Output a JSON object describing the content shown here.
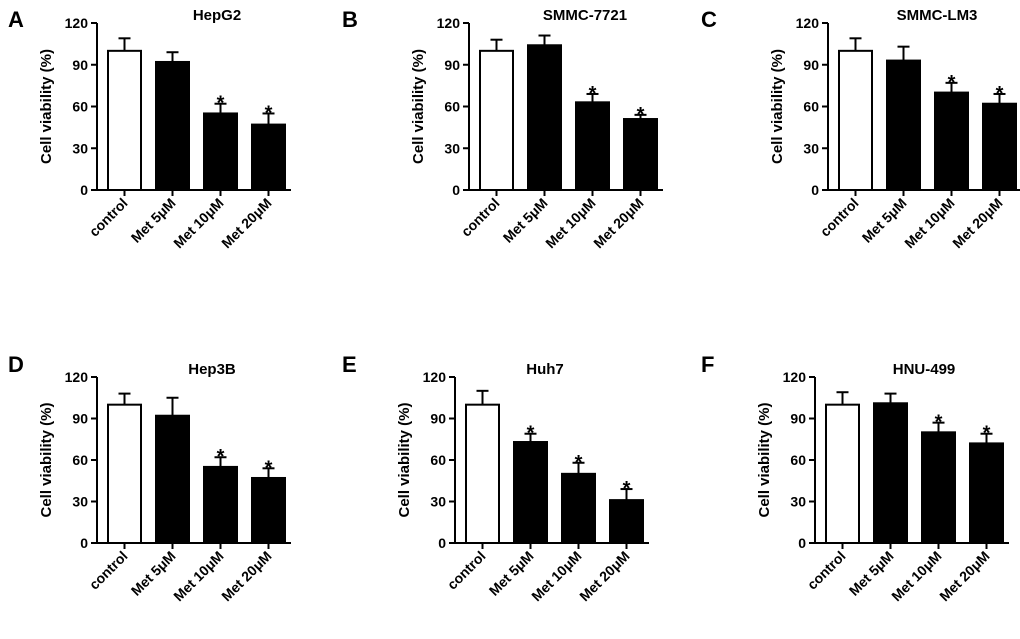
{
  "figure": {
    "ylabel": "Cell viability (%)"
  },
  "chart_data": [
    {
      "type": "bar",
      "panel": "A",
      "title": "HepG2",
      "categories": [
        "control",
        "Met 5μM",
        "Met 10μM",
        "Met 20μM"
      ],
      "values": [
        100,
        92,
        55,
        47
      ],
      "errors": [
        9,
        7,
        7,
        8
      ],
      "fills": [
        "#ffffff",
        "#000000",
        "#000000",
        "#000000"
      ],
      "significance": [
        "",
        "",
        "*",
        "*"
      ],
      "ylabel": "Cell viability (%)",
      "ylim": [
        0,
        120
      ],
      "yticks": [
        0,
        30,
        60,
        90,
        120
      ]
    },
    {
      "type": "bar",
      "panel": "B",
      "title": "SMMC-7721",
      "categories": [
        "control",
        "Met 5μM",
        "Met 10μM",
        "Met 20μM"
      ],
      "values": [
        100,
        104,
        63,
        51
      ],
      "errors": [
        8,
        7,
        6,
        3
      ],
      "fills": [
        "#ffffff",
        "#000000",
        "#000000",
        "#000000"
      ],
      "significance": [
        "",
        "",
        "*",
        "*"
      ],
      "ylabel": "Cell viability (%)",
      "ylim": [
        0,
        120
      ],
      "yticks": [
        0,
        30,
        60,
        90,
        120
      ]
    },
    {
      "type": "bar",
      "panel": "C",
      "title": "SMMC-LM3",
      "categories": [
        "control",
        "Met 5μM",
        "Met 10μM",
        "Met 20μM"
      ],
      "values": [
        100,
        93,
        70,
        62
      ],
      "errors": [
        9,
        10,
        7,
        7
      ],
      "fills": [
        "#ffffff",
        "#000000",
        "#000000",
        "#000000"
      ],
      "significance": [
        "",
        "",
        "*",
        "*"
      ],
      "ylabel": "Cell viability (%)",
      "ylim": [
        0,
        120
      ],
      "yticks": [
        0,
        30,
        60,
        90,
        120
      ]
    },
    {
      "type": "bar",
      "panel": "D",
      "title": "Hep3B",
      "categories": [
        "control",
        "Met 5μM",
        "Met 10μM",
        "Met 20μM"
      ],
      "values": [
        100,
        92,
        55,
        47
      ],
      "errors": [
        8,
        13,
        7,
        7
      ],
      "fills": [
        "#ffffff",
        "#000000",
        "#000000",
        "#000000"
      ],
      "significance": [
        "",
        "",
        "*",
        "*"
      ],
      "ylabel": "Cell viability (%)",
      "ylim": [
        0,
        120
      ],
      "yticks": [
        0,
        30,
        60,
        90,
        120
      ]
    },
    {
      "type": "bar",
      "panel": "E",
      "title": "Huh7",
      "categories": [
        "control",
        "Met 5μM",
        "Met 10μM",
        "Met 20μM"
      ],
      "values": [
        100,
        73,
        50,
        31
      ],
      "errors": [
        10,
        6,
        8,
        8
      ],
      "fills": [
        "#ffffff",
        "#000000",
        "#000000",
        "#000000"
      ],
      "significance": [
        "",
        "*",
        "*",
        "*"
      ],
      "ylabel": "Cell viability (%)",
      "ylim": [
        0,
        120
      ],
      "yticks": [
        0,
        30,
        60,
        90,
        120
      ]
    },
    {
      "type": "bar",
      "panel": "F",
      "title": "HNU-499",
      "categories": [
        "control",
        "Met 5μM",
        "Met 10μM",
        "Met 20μM"
      ],
      "values": [
        100,
        101,
        80,
        72
      ],
      "errors": [
        9,
        7,
        7,
        7
      ],
      "fills": [
        "#ffffff",
        "#000000",
        "#000000",
        "#000000"
      ],
      "significance": [
        "",
        "",
        "*",
        "*"
      ],
      "ylabel": "Cell viability (%)",
      "ylim": [
        0,
        120
      ],
      "yticks": [
        0,
        30,
        60,
        90,
        120
      ]
    }
  ]
}
